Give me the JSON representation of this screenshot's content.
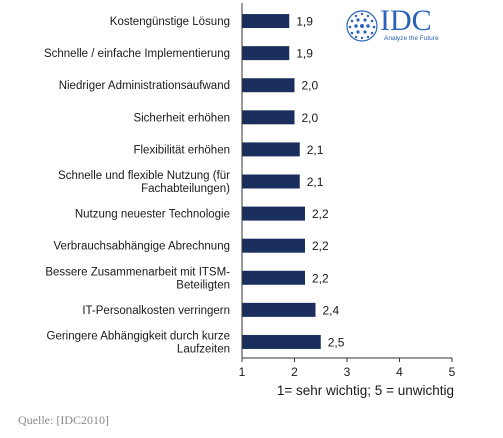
{
  "logo": {
    "name": "IDC",
    "tagline": "Analyze the Future",
    "color": "#2a62b8"
  },
  "source": "Quelle: [IDC2010]",
  "chart_data": {
    "type": "bar",
    "orientation": "horizontal",
    "categories": [
      [
        "Kostengünstige Lösung"
      ],
      [
        "Schnelle / einfache Implementierung"
      ],
      [
        "Niedriger Administrationsaufwand"
      ],
      [
        "Sicherheit erhöhen"
      ],
      [
        "Flexibilität erhöhen"
      ],
      [
        "Schnelle und flexible Nutzung (für",
        "Fachabteilungen)"
      ],
      [
        "Nutzung neuester Technologie"
      ],
      [
        "Verbrauchsabhängige Abrechnung"
      ],
      [
        "Bessere Zusammenarbeit mit ITSM-",
        "Beteiligten"
      ],
      [
        "IT-Personalkosten verringern"
      ],
      [
        "Geringere Abhängigkeit durch kurze",
        "Laufzeiten"
      ]
    ],
    "values": [
      1.9,
      1.9,
      2.0,
      2.0,
      2.1,
      2.1,
      2.2,
      2.2,
      2.2,
      2.4,
      2.5
    ],
    "value_labels": [
      "1,9",
      "1,9",
      "2,0",
      "2,0",
      "2,1",
      "2,1",
      "2,2",
      "2,2",
      "2,2",
      "2,4",
      "2,5"
    ],
    "xlim": [
      1,
      5
    ],
    "xticks": [
      1,
      2,
      3,
      4,
      5
    ],
    "xlabel": "1= sehr wichtig; 5 = unwichtig",
    "bar_color": "#1b2f5e",
    "grid": false
  }
}
